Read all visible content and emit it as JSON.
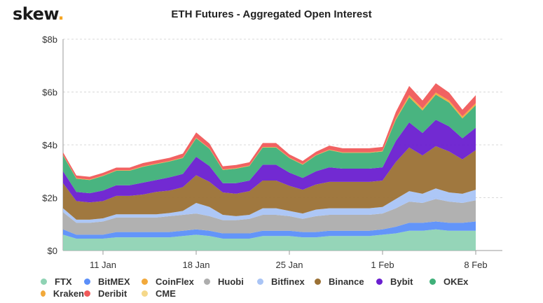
{
  "brand": {
    "name": "skew",
    "dot": "."
  },
  "title": "ETH Futures - Aggregated Open Interest",
  "chart_data": {
    "type": "area",
    "stacked": true,
    "title": "ETH Futures - Aggregated Open Interest",
    "xlabel": "",
    "ylabel": "",
    "ylim": [
      0,
      8
    ],
    "y_unit": "b",
    "y_ticks": [
      0,
      2,
      4,
      6,
      8
    ],
    "y_tick_labels": [
      "$0",
      "$2b",
      "$4b",
      "$6b",
      "$8b"
    ],
    "x_ticks": [
      3,
      10,
      17,
      24,
      31
    ],
    "x_tick_labels": [
      "11 Jan",
      "18 Jan",
      "25 Jan",
      "1 Feb",
      "8 Feb"
    ],
    "x_range": [
      0,
      33
    ],
    "grid": true,
    "legend_position": "bottom",
    "series": [
      {
        "name": "FTX",
        "color": "#8fd3b4",
        "values": [
          0.6,
          0.45,
          0.45,
          0.45,
          0.5,
          0.5,
          0.5,
          0.5,
          0.5,
          0.55,
          0.6,
          0.55,
          0.45,
          0.45,
          0.45,
          0.55,
          0.55,
          0.55,
          0.5,
          0.5,
          0.55,
          0.55,
          0.55,
          0.55,
          0.6,
          0.65,
          0.75,
          0.75,
          0.8,
          0.75,
          0.75,
          0.75
        ]
      },
      {
        "name": "BitMEX",
        "color": "#5b8ff9",
        "values": [
          0.2,
          0.15,
          0.15,
          0.15,
          0.2,
          0.2,
          0.2,
          0.2,
          0.2,
          0.2,
          0.2,
          0.2,
          0.2,
          0.2,
          0.2,
          0.2,
          0.2,
          0.2,
          0.2,
          0.2,
          0.2,
          0.2,
          0.2,
          0.2,
          0.2,
          0.25,
          0.3,
          0.3,
          0.3,
          0.3,
          0.3,
          0.35
        ]
      },
      {
        "name": "CoinFlex",
        "color": "#f2a93b",
        "values": [
          0,
          0,
          0,
          0,
          0,
          0,
          0,
          0,
          0,
          0,
          0,
          0,
          0,
          0,
          0,
          0,
          0,
          0,
          0,
          0,
          0,
          0,
          0,
          0,
          0,
          0,
          0,
          0,
          0,
          0,
          0,
          0
        ]
      },
      {
        "name": "Huobi",
        "color": "#adadad",
        "values": [
          0.65,
          0.45,
          0.45,
          0.5,
          0.55,
          0.55,
          0.55,
          0.55,
          0.6,
          0.6,
          0.6,
          0.55,
          0.5,
          0.5,
          0.55,
          0.6,
          0.6,
          0.55,
          0.5,
          0.6,
          0.6,
          0.6,
          0.6,
          0.6,
          0.6,
          0.7,
          0.8,
          0.75,
          0.85,
          0.8,
          0.75,
          0.8
        ]
      },
      {
        "name": "Bitfinex",
        "color": "#a9c4f5",
        "values": [
          0.15,
          0.12,
          0.12,
          0.12,
          0.12,
          0.12,
          0.12,
          0.12,
          0.12,
          0.15,
          0.4,
          0.35,
          0.2,
          0.15,
          0.15,
          0.25,
          0.25,
          0.2,
          0.2,
          0.25,
          0.25,
          0.25,
          0.25,
          0.25,
          0.25,
          0.35,
          0.4,
          0.35,
          0.4,
          0.35,
          0.35,
          0.4
        ]
      },
      {
        "name": "Binance",
        "color": "#9b7135",
        "values": [
          0.95,
          0.7,
          0.65,
          0.65,
          0.7,
          0.7,
          0.75,
          0.85,
          0.85,
          0.9,
          1.05,
          0.95,
          0.85,
          0.85,
          0.9,
          1.05,
          1.05,
          0.95,
          0.9,
          0.95,
          1.0,
          1.0,
          1.0,
          1.0,
          1.0,
          1.4,
          1.65,
          1.45,
          1.6,
          1.55,
          1.3,
          1.5
        ]
      },
      {
        "name": "Bybit",
        "color": "#6a1fd0",
        "values": [
          0.45,
          0.35,
          0.35,
          0.4,
          0.4,
          0.4,
          0.45,
          0.45,
          0.5,
          0.5,
          0.7,
          0.6,
          0.35,
          0.4,
          0.4,
          0.6,
          0.6,
          0.5,
          0.45,
          0.5,
          0.55,
          0.5,
          0.5,
          0.5,
          0.5,
          0.8,
          0.95,
          0.85,
          1.0,
          0.95,
          0.8,
          0.85
        ]
      },
      {
        "name": "OKEx",
        "color": "#3fb079",
        "values": [
          0.6,
          0.5,
          0.5,
          0.55,
          0.55,
          0.55,
          0.6,
          0.6,
          0.6,
          0.6,
          0.7,
          0.65,
          0.5,
          0.55,
          0.55,
          0.65,
          0.65,
          0.55,
          0.5,
          0.6,
          0.65,
          0.6,
          0.6,
          0.6,
          0.6,
          0.8,
          0.95,
          0.85,
          0.95,
          0.9,
          0.75,
          0.85
        ]
      },
      {
        "name": "Kraken",
        "color": "#f2a93b",
        "values": [
          0.02,
          0.02,
          0.02,
          0.02,
          0.02,
          0.02,
          0.02,
          0.02,
          0.02,
          0.02,
          0.02,
          0.02,
          0.02,
          0.02,
          0.02,
          0.02,
          0.02,
          0.02,
          0.02,
          0.02,
          0.02,
          0.02,
          0.02,
          0.02,
          0.02,
          0.05,
          0.08,
          0.08,
          0.08,
          0.08,
          0.08,
          0.08
        ]
      },
      {
        "name": "Deribit",
        "color": "#f05a5a",
        "values": [
          0.1,
          0.1,
          0.1,
          0.1,
          0.1,
          0.1,
          0.12,
          0.12,
          0.12,
          0.15,
          0.2,
          0.18,
          0.12,
          0.12,
          0.12,
          0.15,
          0.15,
          0.12,
          0.12,
          0.12,
          0.15,
          0.15,
          0.15,
          0.15,
          0.15,
          0.25,
          0.35,
          0.3,
          0.35,
          0.3,
          0.25,
          0.3
        ]
      },
      {
        "name": "CME",
        "color": "#f5d88a",
        "values": [
          0,
          0,
          0,
          0,
          0,
          0,
          0,
          0,
          0,
          0,
          0,
          0,
          0,
          0,
          0,
          0,
          0,
          0,
          0,
          0,
          0,
          0,
          0,
          0,
          0,
          0,
          0,
          0,
          0,
          0,
          0,
          0
        ]
      }
    ]
  }
}
